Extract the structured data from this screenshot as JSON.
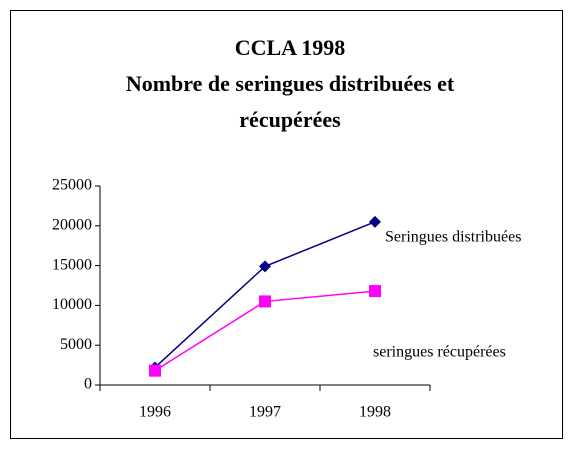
{
  "chart_data": {
    "type": "line",
    "title": "CCLA 1998",
    "subtitle": "Nombre de seringues distribuées et récupérées",
    "categories": [
      "1996",
      "1997",
      "1998"
    ],
    "series": [
      {
        "name": "Seringues distribuées",
        "color": "#000080",
        "marker": "diamond",
        "values": [
          2200,
          14900,
          20500
        ]
      },
      {
        "name": "seringues récupérées",
        "color": "#ff00ff",
        "marker": "square",
        "values": [
          1800,
          10500,
          11800
        ]
      }
    ],
    "ylim": [
      0,
      25000
    ],
    "yticks": [
      0,
      5000,
      10000,
      15000,
      20000,
      25000
    ],
    "grid": false
  }
}
